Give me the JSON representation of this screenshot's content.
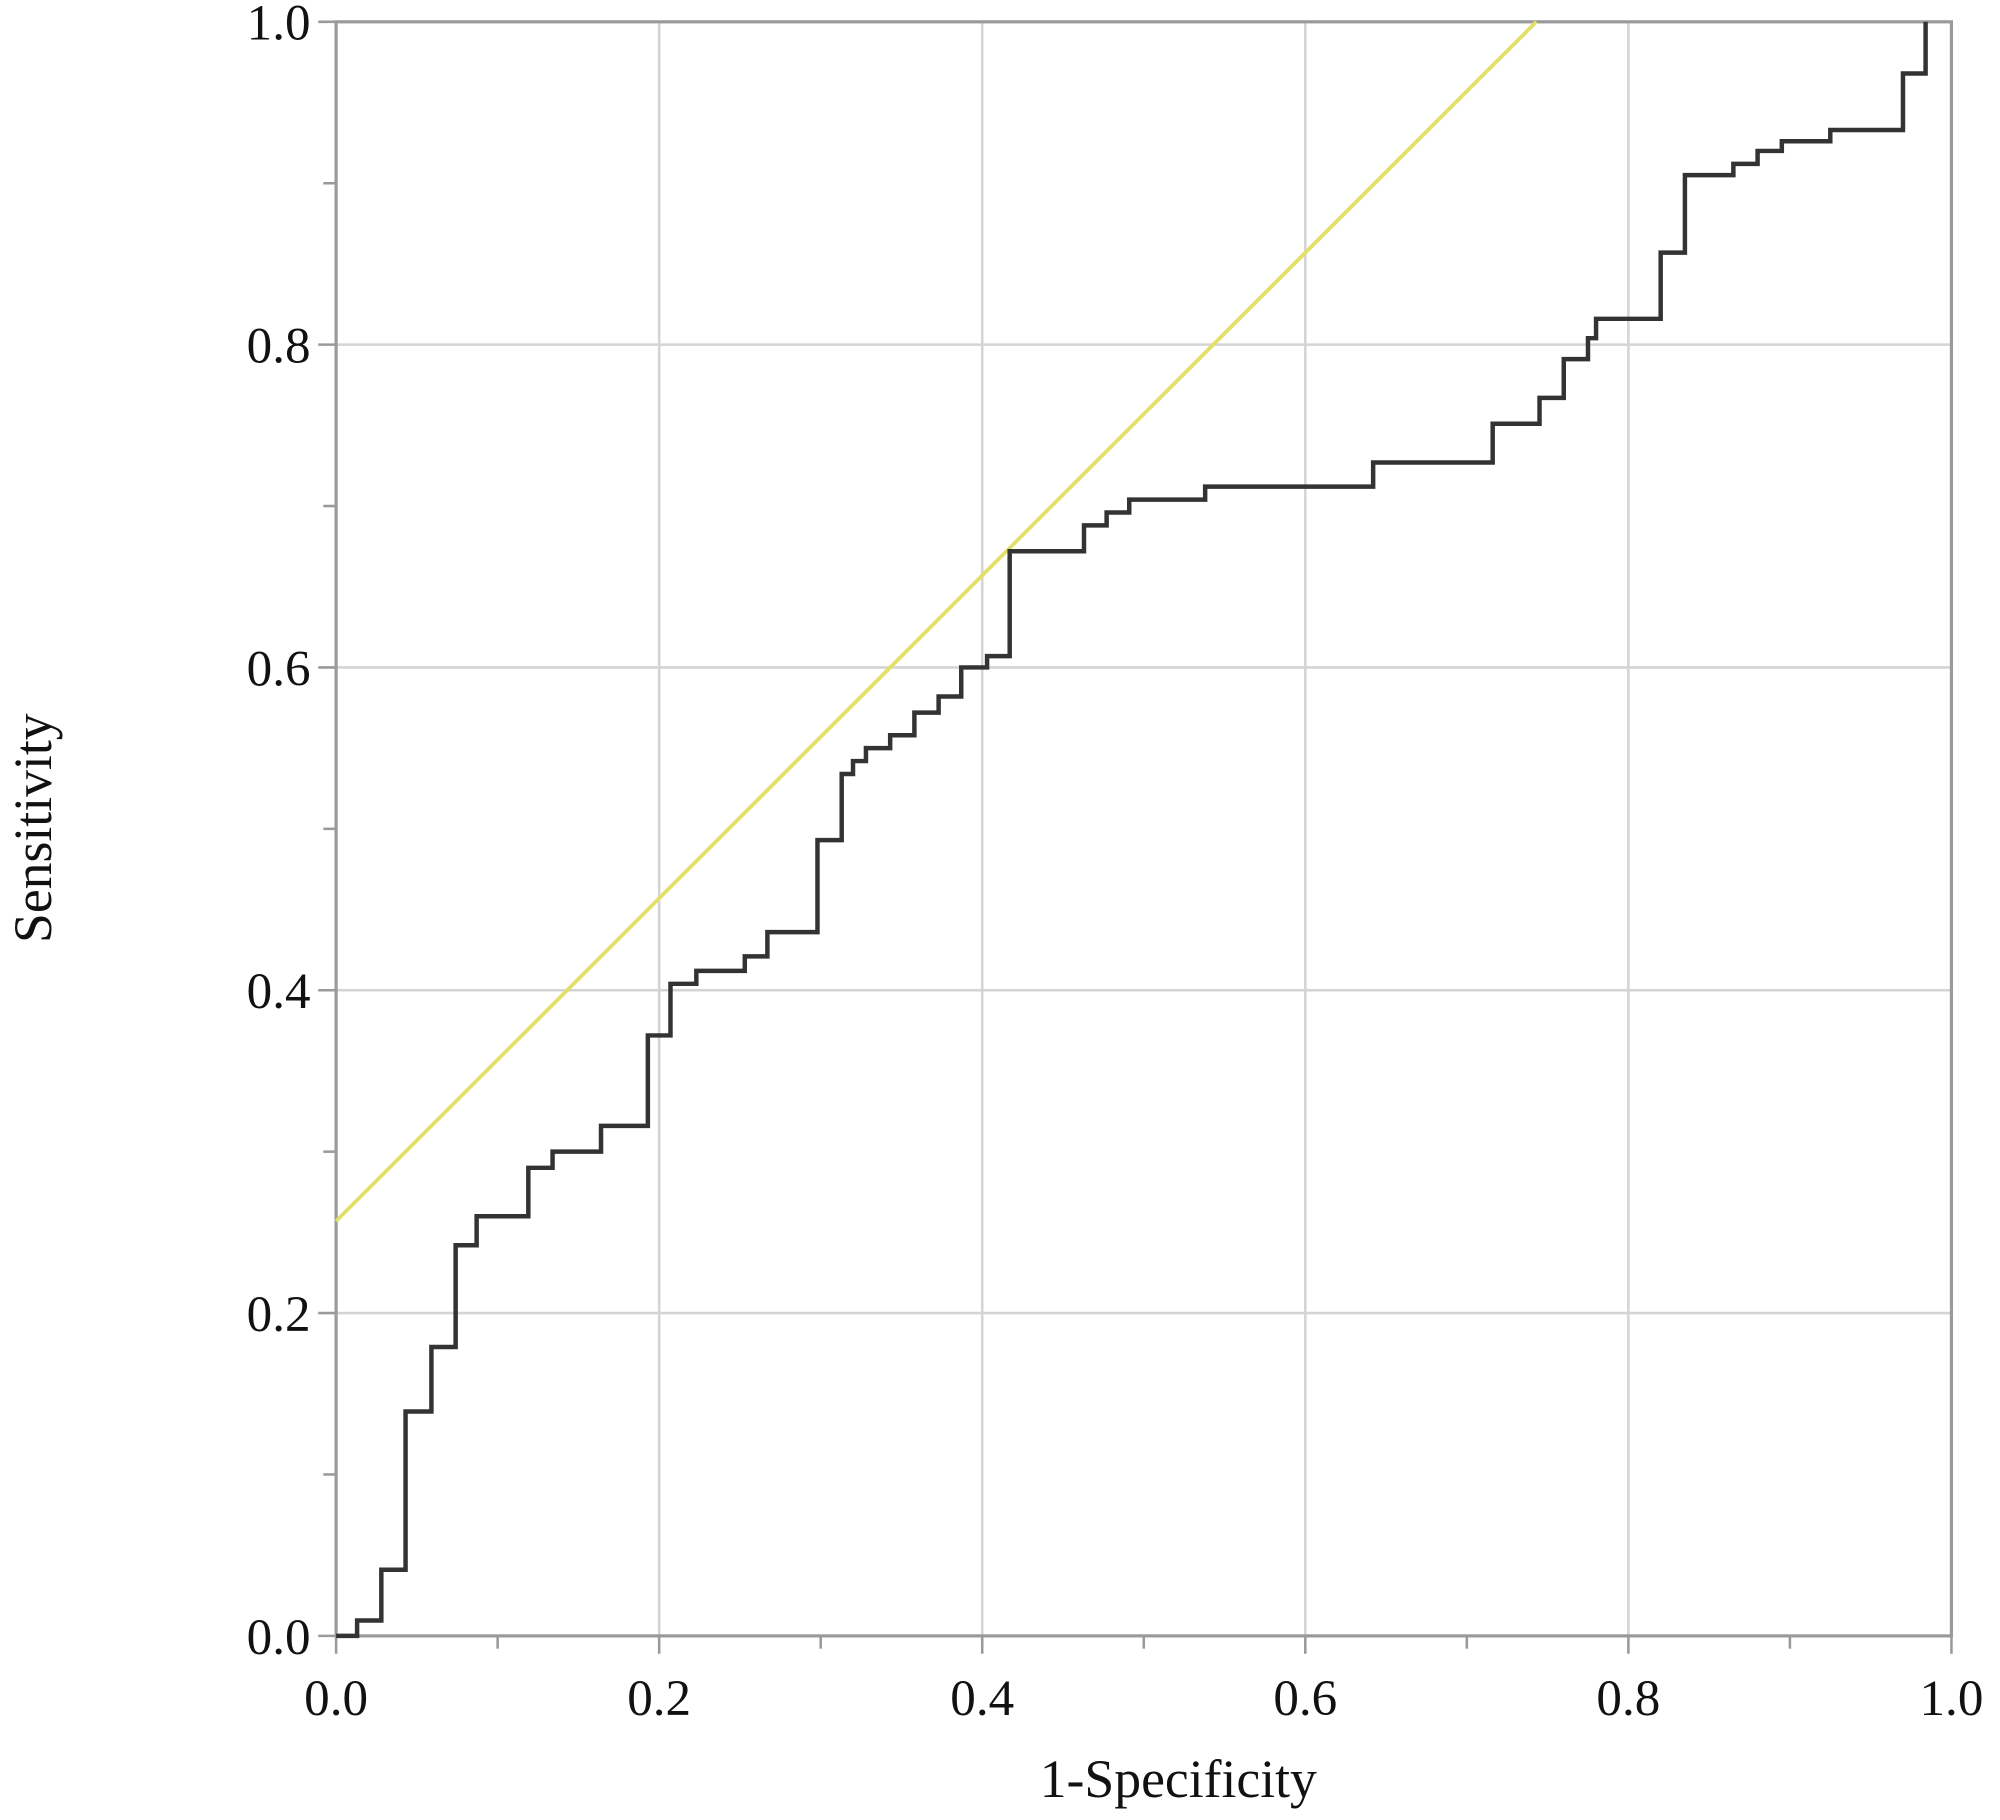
{
  "chart_data": {
    "type": "line",
    "title": "",
    "xlabel": "1-Specificity",
    "ylabel": "Sensitivity",
    "xlim": [
      0,
      1
    ],
    "ylim": [
      0,
      1
    ],
    "grid": true,
    "x_ticks": [
      "0.0",
      "0.2",
      "0.4",
      "0.6",
      "0.8",
      "1.0"
    ],
    "y_ticks": [
      "0.0",
      "0.2",
      "0.4",
      "0.6",
      "0.8",
      "1.0"
    ],
    "x_tick_values": [
      0,
      0.2,
      0.4,
      0.6,
      0.8,
      1.0
    ],
    "y_tick_values": [
      0,
      0.2,
      0.4,
      0.6,
      0.8,
      1.0
    ],
    "minor_tick_values": [
      0.1,
      0.3,
      0.5,
      0.7,
      0.9
    ],
    "colors": {
      "roc": "#333333",
      "reference": "#e3e06a",
      "grid": "#d4d4d4",
      "axis": "#9a9a9a"
    },
    "series": [
      {
        "type": "step",
        "points": [
          [
            0,
            0
          ],
          [
            0.013,
            0.0095
          ],
          [
            0.028,
            0.041
          ],
          [
            0.043,
            0.139
          ],
          [
            0.059,
            0.179
          ],
          [
            0.074,
            0.242
          ],
          [
            0.087,
            0.26
          ],
          [
            0.119,
            0.29
          ],
          [
            0.134,
            0.3
          ],
          [
            0.164,
            0.316
          ],
          [
            0.193,
            0.372
          ],
          [
            0.207,
            0.404
          ],
          [
            0.223,
            0.412
          ],
          [
            0.253,
            0.421
          ],
          [
            0.267,
            0.436
          ],
          [
            0.298,
            0.493
          ],
          [
            0.313,
            0.534
          ],
          [
            0.32,
            0.542
          ],
          [
            0.328,
            0.55
          ],
          [
            0.343,
            0.558
          ],
          [
            0.358,
            0.572
          ],
          [
            0.373,
            0.582
          ],
          [
            0.387,
            0.6
          ],
          [
            0.403,
            0.607
          ],
          [
            0.417,
            0.672
          ],
          [
            0.463,
            0.688
          ],
          [
            0.477,
            0.696
          ],
          [
            0.491,
            0.704
          ],
          [
            0.538,
            0.712
          ],
          [
            0.642,
            0.727
          ],
          [
            0.716,
            0.751
          ],
          [
            0.745,
            0.767
          ],
          [
            0.76,
            0.791
          ],
          [
            0.775,
            0.804
          ],
          [
            0.78,
            0.816
          ],
          [
            0.82,
            0.857
          ],
          [
            0.835,
            0.905
          ],
          [
            0.865,
            0.912
          ],
          [
            0.88,
            0.92
          ],
          [
            0.895,
            0.926
          ],
          [
            0.925,
            0.933
          ],
          [
            0.97,
            0.968
          ],
          [
            0.984,
            1.0
          ]
        ]
      },
      {
        "type": "reference-line",
        "points": [
          [
            0,
            0.257
          ],
          [
            0.743,
            1.0
          ]
        ]
      }
    ]
  }
}
